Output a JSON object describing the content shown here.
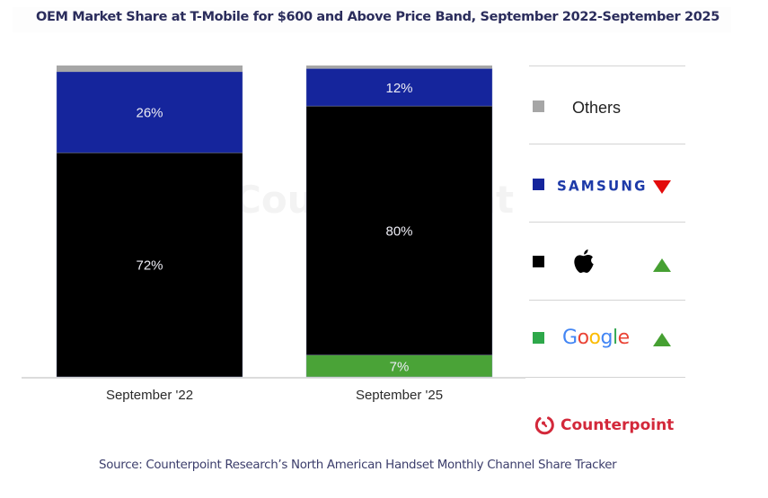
{
  "title": "OEM Market Share at T-Mobile for $600 and Above Price Band, September 2022-September 2025",
  "watermark": "Counterpoint",
  "chart_data": {
    "type": "bar",
    "stacked": true,
    "normalized": true,
    "title": "OEM Market Share at T-Mobile for $600 and Above Price Band, September 2022-September 2025",
    "xlabel": "",
    "ylabel": "",
    "ylim": [
      0,
      100
    ],
    "grid": false,
    "legend_position": "right",
    "categories": [
      "September '22",
      "September '25"
    ],
    "series": [
      {
        "name": "Google",
        "color": "#4aa337",
        "values": [
          0,
          7
        ],
        "labels": [
          "",
          "7%"
        ]
      },
      {
        "name": "Apple",
        "color": "#000000",
        "values": [
          72,
          80
        ],
        "labels": [
          "72%",
          "80%"
        ]
      },
      {
        "name": "Samsung",
        "color": "#15259c",
        "values": [
          26,
          12
        ],
        "labels": [
          "26%",
          "12%"
        ]
      },
      {
        "name": "Others",
        "color": "#a6a6a6",
        "values": [
          2,
          1
        ],
        "labels": [
          "",
          ""
        ]
      }
    ]
  },
  "legend": {
    "items": [
      {
        "name": "Others",
        "label": "Others",
        "color": "#a6a6a6",
        "trend": "none"
      },
      {
        "name": "Samsung",
        "label": "SAMSUNG",
        "color": "#15259c",
        "trend": "down",
        "trend_color": "#e30b0b"
      },
      {
        "name": "Apple",
        "label": "Apple logo",
        "color": "#000000",
        "trend": "up",
        "trend_color": "#46a032"
      },
      {
        "name": "Google",
        "label": "Google",
        "color": "#2ea84a",
        "trend": "up",
        "trend_color": "#46a032"
      }
    ],
    "google_letters": [
      {
        "ch": "G",
        "color": "#4285f4"
      },
      {
        "ch": "o",
        "color": "#ea4335"
      },
      {
        "ch": "o",
        "color": "#fbbc05"
      },
      {
        "ch": "g",
        "color": "#4285f4"
      },
      {
        "ch": "l",
        "color": "#34a853"
      },
      {
        "ch": "e",
        "color": "#ea4335"
      }
    ]
  },
  "brand": {
    "name": "Counterpoint",
    "color": "#d3283a"
  },
  "source": "Source: Counterpoint Research’s North American Handset Monthly Channel Share Tracker"
}
